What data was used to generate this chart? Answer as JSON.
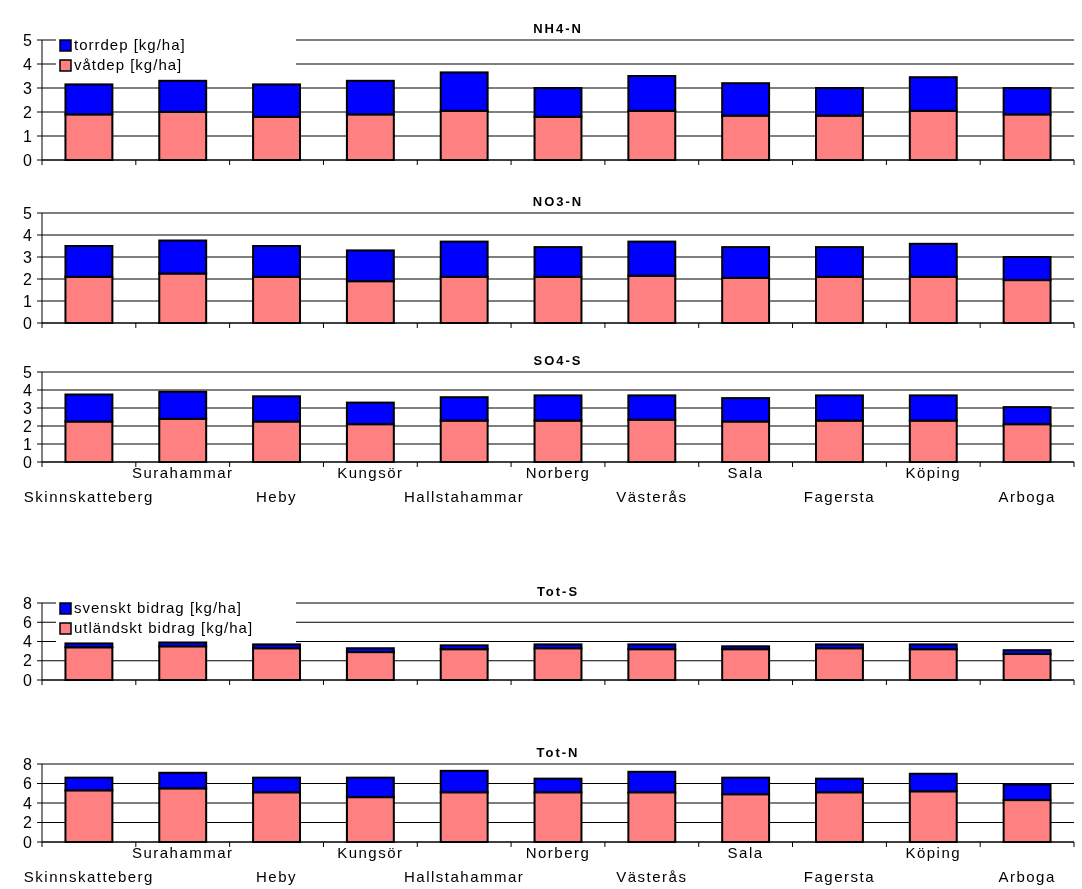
{
  "chart_data": [
    {
      "type": "bar",
      "title": "NH4-N",
      "stacked": true,
      "categories": [
        null,
        null,
        null,
        null,
        null,
        null,
        null,
        null,
        null,
        null,
        null
      ],
      "ylim": [
        0,
        5
      ],
      "yticks": [
        0,
        1,
        2,
        3,
        4,
        5
      ],
      "grid": "y",
      "legend": "top left",
      "tick_labels": "y",
      "series": [
        {
          "name": "våtdep [kg/ha]",
          "color": "#ff8080",
          "values": [
            1.9,
            2.0,
            1.8,
            1.9,
            2.05,
            1.8,
            2.05,
            1.85,
            1.85,
            2.05,
            1.9
          ]
        },
        {
          "name": "torrdep [kg/ha]",
          "color": "#0000ff",
          "values": [
            1.25,
            1.3,
            1.35,
            1.4,
            1.6,
            1.2,
            1.45,
            1.35,
            1.15,
            1.4,
            1.1
          ]
        }
      ]
    },
    {
      "type": "bar",
      "title": "NO3-N",
      "stacked": true,
      "categories": [
        null,
        null,
        null,
        null,
        null,
        null,
        null,
        null,
        null,
        null,
        null
      ],
      "ylim": [
        0,
        5
      ],
      "yticks": [
        0,
        1,
        2,
        3,
        4,
        5
      ],
      "grid": "y",
      "tick_labels": "y",
      "series": [
        {
          "color": "#ff8080",
          "values": [
            2.1,
            2.25,
            2.1,
            1.9,
            2.1,
            2.1,
            2.15,
            2.05,
            2.1,
            2.1,
            1.95
          ]
        },
        {
          "color": "#0000ff",
          "values": [
            1.4,
            1.5,
            1.4,
            1.4,
            1.6,
            1.35,
            1.55,
            1.4,
            1.35,
            1.5,
            1.05
          ]
        }
      ]
    },
    {
      "type": "bar",
      "title": "SO4-S",
      "stacked": true,
      "categories": [
        "Skinnskatteberg",
        "Surahammar",
        "Heby",
        "Kungsör",
        "Hallstahammar",
        "Norberg",
        "Västerås",
        "Sala",
        "Fagersta",
        "Köping",
        "Arboga"
      ],
      "ylim": [
        0,
        5
      ],
      "yticks": [
        0,
        1,
        2,
        3,
        4,
        5
      ],
      "grid": "y",
      "series": [
        {
          "color": "#ff8080",
          "values": [
            2.25,
            2.4,
            2.25,
            2.1,
            2.3,
            2.3,
            2.35,
            2.25,
            2.3,
            2.3,
            2.1
          ]
        },
        {
          "color": "#0000ff",
          "values": [
            1.5,
            1.5,
            1.4,
            1.2,
            1.3,
            1.4,
            1.35,
            1.3,
            1.4,
            1.4,
            0.95
          ]
        }
      ]
    },
    {
      "type": "bar",
      "title": "Tot-S",
      "stacked": true,
      "categories": [
        null,
        null,
        null,
        null,
        null,
        null,
        null,
        null,
        null,
        null,
        null
      ],
      "ylim": [
        0,
        8
      ],
      "yticks": [
        0,
        2,
        4,
        6,
        8
      ],
      "grid": "y",
      "legend": "top left",
      "tick_labels": "y",
      "series": [
        {
          "name": "utländskt bidrag [kg/ha]",
          "color": "#ff8080",
          "values": [
            3.4,
            3.5,
            3.3,
            2.9,
            3.2,
            3.3,
            3.2,
            3.2,
            3.3,
            3.2,
            2.7
          ]
        },
        {
          "name": "svenskt bidrag [kg/ha]",
          "color": "#0000ff",
          "values": [
            0.4,
            0.4,
            0.4,
            0.4,
            0.4,
            0.4,
            0.5,
            0.3,
            0.4,
            0.5,
            0.4
          ]
        }
      ]
    },
    {
      "type": "bar",
      "title": "Tot-N",
      "stacked": true,
      "categories": [
        "Skinnskatteberg",
        "Surahammar",
        "Heby",
        "Kungsör",
        "Hallstahammar",
        "Norberg",
        "Västerås",
        "Sala",
        "Fagersta",
        "Köping",
        "Arboga"
      ],
      "ylim": [
        0,
        8
      ],
      "yticks": [
        0,
        2,
        4,
        6,
        8
      ],
      "grid": "y",
      "series": [
        {
          "color": "#ff8080",
          "values": [
            5.3,
            5.5,
            5.1,
            4.6,
            5.1,
            5.1,
            5.1,
            4.9,
            5.1,
            5.2,
            4.3
          ]
        },
        {
          "color": "#0000ff",
          "values": [
            1.3,
            1.6,
            1.5,
            2.0,
            2.2,
            1.4,
            2.1,
            1.7,
            1.4,
            1.8,
            1.6
          ]
        }
      ]
    }
  ]
}
